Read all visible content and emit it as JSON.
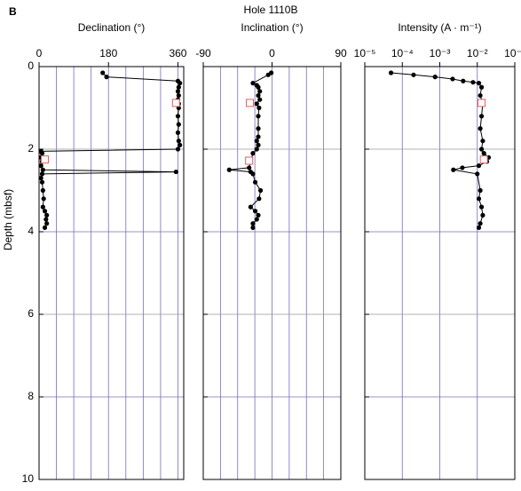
{
  "panel_label": "B",
  "title": "Hole 1110B",
  "chart_data": [
    {
      "type": "line",
      "title": "Declination  (°)",
      "ylabel": "Depth (mbsf)",
      "show_ytick_labels": true,
      "xlim": [
        0,
        375
      ],
      "xticks": [
        0,
        180,
        360
      ],
      "xgrid": [
        45,
        90,
        135,
        180,
        225,
        270,
        315,
        360
      ],
      "ylim": [
        0,
        10
      ],
      "yticks": [
        0,
        2,
        4,
        6,
        8,
        10
      ],
      "x": [
        165,
        175,
        360,
        365,
        362,
        360,
        362,
        360,
        362,
        362,
        360,
        362,
        360,
        362,
        365,
        360,
        5,
        8,
        5,
        8,
        5,
        10,
        355,
        8,
        5,
        8,
        10,
        12,
        10,
        15,
        20,
        18,
        20,
        15
      ],
      "y": [
        0.15,
        0.25,
        0.35,
        0.4,
        0.5,
        0.6,
        0.7,
        0.8,
        0.9,
        1.0,
        1.2,
        1.4,
        1.6,
        1.8,
        1.9,
        2.0,
        2.05,
        2.1,
        2.2,
        2.3,
        2.4,
        2.5,
        2.55,
        2.6,
        2.7,
        2.8,
        3.0,
        3.2,
        3.4,
        3.5,
        3.6,
        3.7,
        3.8,
        3.9
      ],
      "samples": {
        "x": [
          355,
          15
        ],
        "y": [
          0.88,
          2.25
        ]
      }
    },
    {
      "type": "line",
      "title": "Inclination  (°)",
      "show_ytick_labels": false,
      "xlim": [
        -90,
        90
      ],
      "xticks": [
        -90,
        0,
        90
      ],
      "xgrid": [
        -67.5,
        -45,
        -22.5,
        0,
        22.5,
        45,
        67.5
      ],
      "ylim": [
        0,
        10
      ],
      "yticks": [
        0,
        2,
        4,
        6,
        8,
        10
      ],
      "x": [
        -1,
        -5,
        -25,
        -20,
        -18,
        -16,
        -18,
        -16,
        -20,
        -17,
        -18,
        -18,
        -18,
        -20,
        -18,
        -20,
        -25,
        -28,
        -30,
        -56,
        -28,
        -25,
        -22,
        -15,
        -17,
        -28,
        -22,
        -18,
        -20,
        -25,
        -25
      ],
      "y": [
        0.15,
        0.2,
        0.4,
        0.45,
        0.5,
        0.6,
        0.7,
        0.8,
        0.9,
        1.0,
        1.2,
        1.5,
        1.7,
        1.8,
        1.9,
        2.0,
        2.1,
        2.3,
        2.45,
        2.5,
        2.55,
        2.6,
        2.8,
        3.0,
        3.2,
        3.4,
        3.5,
        3.6,
        3.7,
        3.8,
        3.9
      ],
      "samples": {
        "x": [
          -29,
          -30
        ],
        "y": [
          0.88,
          2.28
        ]
      }
    },
    {
      "type": "line",
      "title": "Intensity (A · m⁻¹)",
      "show_ytick_labels": false,
      "xscale": "log",
      "xlim": [
        1e-05,
        0.1
      ],
      "xticks": [
        {
          "value": 1e-05,
          "label": "10⁻⁵"
        },
        {
          "value": 0.0001,
          "label": "10⁻⁴"
        },
        {
          "value": 0.001,
          "label": "10⁻³"
        },
        {
          "value": 0.01,
          "label": "10⁻²"
        },
        {
          "value": 0.1,
          "label": "10⁻¹"
        }
      ],
      "xgrid": [
        0.0001,
        0.001,
        0.01
      ],
      "ylim": [
        0,
        10
      ],
      "yticks": [
        0,
        2,
        4,
        6,
        8,
        10
      ],
      "x": [
        5e-05,
        0.0002,
        0.00075,
        0.0022,
        0.0042,
        0.0077,
        0.011,
        0.013,
        0.012,
        0.014,
        0.013,
        0.012,
        0.014,
        0.013,
        0.015,
        0.02,
        0.018,
        0.011,
        0.004,
        0.0023,
        0.01,
        0.012,
        0.011,
        0.013,
        0.014,
        0.012,
        0.011
      ],
      "y": [
        0.15,
        0.2,
        0.25,
        0.3,
        0.35,
        0.38,
        0.4,
        0.5,
        0.7,
        0.9,
        1.2,
        1.5,
        1.8,
        2.0,
        2.1,
        2.2,
        2.3,
        2.4,
        2.45,
        2.5,
        2.6,
        3.0,
        3.2,
        3.4,
        3.6,
        3.8,
        3.9
      ],
      "samples": {
        "x": [
          0.013,
          0.015
        ],
        "y": [
          0.88,
          2.25
        ]
      }
    }
  ]
}
